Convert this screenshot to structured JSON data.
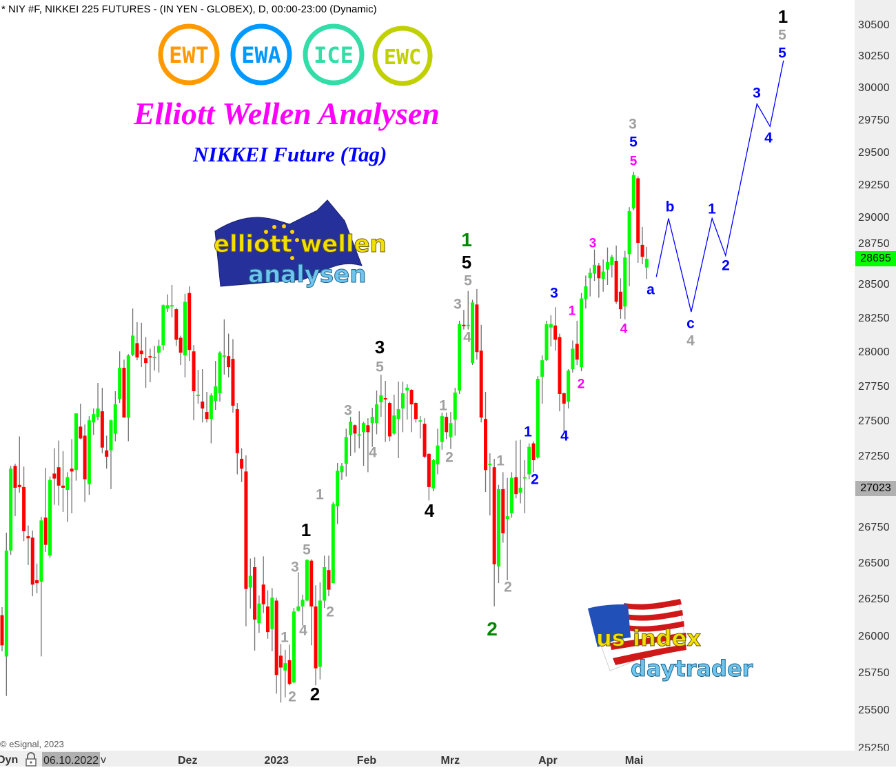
{
  "header": {
    "symbol_title": "* NIY #F, NIKKEI 225 FUTURES - (IN YEN - GLOBEX), D, 00:00-23:00 (Dynamic)",
    "headline": "Elliott Wellen Analysen",
    "subheadline": "NIKKEI Future (Tag)",
    "headline_color": "#ff00ff",
    "subheadline_color": "#0000ff",
    "badges": [
      {
        "text": "EWT",
        "color": "#ff9900"
      },
      {
        "text": "EWA",
        "color": "#0099ff"
      },
      {
        "text": "ICE",
        "color": "#33dda8"
      },
      {
        "text": "EWC",
        "color": "#c0d000"
      }
    ],
    "logo_elliott": {
      "line1": "elliott wellen",
      "line2": "analysen"
    },
    "logo_us": {
      "line1": "us index",
      "line2": "daytrader"
    }
  },
  "footer": {
    "copyright": "© eSignal, 2023",
    "mode": "Dyn",
    "date": "06.10.2022",
    "suffix": "v"
  },
  "chart_data": {
    "type": "candlestick",
    "title": "* NIY #F, NIKKEI 225 FUTURES - (IN YEN - GLOBEX), D, 00:00-23:00 (Dynamic)",
    "y_scale": "log",
    "ylim": [
      25250,
      30650
    ],
    "grid": false,
    "y_ticks": [
      30500,
      30250,
      30000,
      29750,
      29500,
      29250,
      29000,
      28750,
      28500,
      28250,
      28000,
      27750,
      27500,
      27250,
      26750,
      26500,
      26250,
      26000,
      25750,
      25500,
      25250
    ],
    "x_ticks": [
      {
        "label": "Dez",
        "bar": 42.6
      },
      {
        "label": "2023",
        "bar": 63
      },
      {
        "label": "Feb",
        "bar": 83.7
      },
      {
        "label": "Mrz",
        "bar": 102.9
      },
      {
        "label": "Apr",
        "bar": 125.3
      },
      {
        "label": "Mai",
        "bar": 145.1
      }
    ],
    "last_price": {
      "value": "28695",
      "color": "#00ff00"
    },
    "marker_price": {
      "value": "27023",
      "color": "#b0b0b0"
    },
    "up_color": "#00ff00",
    "down_color": "#ff0000",
    "wick_color": "#707070",
    "ohlc_fields": [
      "open",
      "high",
      "low",
      "close"
    ],
    "candles": [
      [
        26145,
        26200,
        25900,
        25940
      ],
      [
        25865,
        26715,
        25600,
        26590
      ],
      [
        26590,
        27185,
        26560,
        27165
      ],
      [
        27185,
        27200,
        26830,
        27030
      ],
      [
        27050,
        27395,
        26995,
        27035
      ],
      [
        27035,
        27180,
        26655,
        26725
      ],
      [
        26690,
        26765,
        26490,
        26675
      ],
      [
        26680,
        26730,
        26275,
        26355
      ],
      [
        26385,
        26500,
        26295,
        26365
      ],
      [
        26375,
        26825,
        25865,
        26800
      ],
      [
        26820,
        27170,
        26580,
        26630
      ],
      [
        26555,
        27110,
        26540,
        27085
      ],
      [
        27130,
        27310,
        26910,
        27095
      ],
      [
        27175,
        27365,
        26905,
        27045
      ],
      [
        27045,
        27290,
        26860,
        27030
      ],
      [
        27015,
        27140,
        26790,
        27105
      ],
      [
        27165,
        27375,
        26850,
        27145
      ],
      [
        27155,
        27560,
        27080,
        27560
      ],
      [
        27465,
        27630,
        27375,
        27380
      ],
      [
        27400,
        27480,
        26930,
        27090
      ],
      [
        27055,
        27540,
        26980,
        27510
      ],
      [
        27495,
        27595,
        27405,
        27555
      ],
      [
        27535,
        27780,
        27510,
        27595
      ],
      [
        27575,
        27745,
        27275,
        27315
      ],
      [
        27295,
        27400,
        27165,
        27250
      ],
      [
        27295,
        27515,
        27020,
        27510
      ],
      [
        27415,
        27720,
        27360,
        27625
      ],
      [
        27665,
        28010,
        27635,
        27890
      ],
      [
        27890,
        27950,
        27530,
        27530
      ],
      [
        27530,
        27990,
        27360,
        27980
      ],
      [
        27985,
        28325,
        27975,
        28125
      ],
      [
        28070,
        28225,
        27945,
        27965
      ],
      [
        28015,
        28220,
        27895,
        27990
      ],
      [
        27960,
        28115,
        27745,
        27925
      ],
      [
        27975,
        28030,
        27785,
        27970
      ],
      [
        27965,
        28050,
        27870,
        27970
      ],
      [
        28000,
        28095,
        27855,
        28050
      ],
      [
        28055,
        28355,
        28020,
        28350
      ],
      [
        28325,
        28430,
        28300,
        28350
      ],
      [
        28345,
        28500,
        28260,
        28350
      ],
      [
        28320,
        28330,
        28050,
        28095
      ],
      [
        28110,
        28125,
        27910,
        28000
      ],
      [
        27980,
        28435,
        27820,
        28375
      ],
      [
        28440,
        28490,
        27940,
        28020
      ],
      [
        28010,
        28055,
        27510,
        27720
      ],
      [
        27690,
        27875,
        27630,
        27695
      ],
      [
        27645,
        27880,
        27495,
        27595
      ],
      [
        27570,
        27715,
        27495,
        27520
      ],
      [
        27520,
        27705,
        27345,
        27690
      ],
      [
        27650,
        27940,
        27585,
        27755
      ],
      [
        27705,
        28010,
        27645,
        28000
      ],
      [
        27975,
        28245,
        27840,
        27980
      ],
      [
        27975,
        28140,
        27820,
        27895
      ],
      [
        27955,
        28100,
        27565,
        27615
      ],
      [
        27590,
        27635,
        27125,
        27275
      ],
      [
        27235,
        27310,
        27070,
        27165
      ],
      [
        27145,
        27260,
        26070,
        26325
      ],
      [
        26335,
        26535,
        26190,
        26415
      ],
      [
        26475,
        26545,
        25905,
        26115
      ],
      [
        26090,
        26280,
        26025,
        26225
      ],
      [
        26355,
        26550,
        26160,
        26220
      ],
      [
        26205,
        26315,
        25985,
        26030
      ],
      [
        26050,
        26330,
        25900,
        26265
      ],
      [
        26245,
        26265,
        25615,
        25740
      ],
      [
        25870,
        25950,
        25555,
        25790
      ],
      [
        25770,
        25910,
        25590,
        25820
      ],
      [
        25840,
        25945,
        25670,
        25680
      ],
      [
        25690,
        26195,
        25685,
        26170
      ],
      [
        26175,
        26440,
        26170,
        26205
      ],
      [
        26205,
        26285,
        26075,
        26250
      ],
      [
        26245,
        26530,
        26240,
        26525
      ],
      [
        26520,
        26530,
        25940,
        26205
      ],
      [
        26205,
        26350,
        25670,
        25785
      ],
      [
        25795,
        26370,
        25710,
        26245
      ],
      [
        26245,
        26555,
        26195,
        26475
      ],
      [
        26455,
        26555,
        26275,
        26320
      ],
      [
        26365,
        26930,
        26365,
        26915
      ],
      [
        26900,
        27205,
        26775,
        27150
      ],
      [
        27140,
        27205,
        27085,
        27185
      ],
      [
        27200,
        27450,
        27110,
        27390
      ],
      [
        27405,
        27535,
        27255,
        27500
      ],
      [
        27475,
        27480,
        27280,
        27415
      ],
      [
        27405,
        27575,
        27310,
        27410
      ],
      [
        27425,
        27500,
        27185,
        27490
      ],
      [
        27475,
        27525,
        27140,
        27425
      ],
      [
        27490,
        27600,
        27320,
        27535
      ],
      [
        27490,
        27725,
        27410,
        27625
      ],
      [
        27640,
        27840,
        27535,
        27690
      ],
      [
        27670,
        27795,
        27355,
        27665
      ],
      [
        27635,
        27645,
        27360,
        27395
      ],
      [
        27415,
        27695,
        27405,
        27545
      ],
      [
        27520,
        27790,
        27240,
        27590
      ],
      [
        27595,
        27790,
        27425,
        27705
      ],
      [
        27725,
        27770,
        27515,
        27745
      ],
      [
        27730,
        27735,
        27425,
        27625
      ],
      [
        27635,
        27640,
        27495,
        27520
      ],
      [
        27505,
        27540,
        27380,
        27510
      ],
      [
        27485,
        27525,
        27240,
        27250
      ],
      [
        27270,
        27275,
        26940,
        27035
      ],
      [
        27025,
        27235,
        27005,
        27225
      ],
      [
        27195,
        27450,
        27125,
        27330
      ],
      [
        27355,
        27565,
        27300,
        27540
      ],
      [
        27535,
        27565,
        27375,
        27425
      ],
      [
        27390,
        27570,
        27305,
        27490
      ],
      [
        27515,
        27745,
        27400,
        27710
      ],
      [
        27725,
        28235,
        27700,
        28210
      ],
      [
        28205,
        28315,
        28170,
        28200
      ],
      [
        28200,
        28455,
        28170,
        28205
      ],
      [
        27925,
        28390,
        27910,
        28370
      ],
      [
        28355,
        28470,
        27950,
        28005
      ],
      [
        28015,
        28205,
        27495,
        27530
      ],
      [
        27520,
        27715,
        27000,
        27155
      ],
      [
        27195,
        27275,
        26835,
        27200
      ],
      [
        27175,
        27235,
        26205,
        26495
      ],
      [
        26480,
        27050,
        26365,
        27020
      ],
      [
        27020,
        27140,
        26645,
        26710
      ],
      [
        26810,
        27100,
        26385,
        26830
      ],
      [
        26850,
        27140,
        26820,
        27100
      ],
      [
        27105,
        27365,
        26955,
        26985
      ],
      [
        26995,
        27370,
        26920,
        27030
      ],
      [
        27100,
        27225,
        26850,
        27105
      ],
      [
        27125,
        27345,
        27090,
        27320
      ],
      [
        27345,
        27360,
        27140,
        27225
      ],
      [
        27245,
        27830,
        27235,
        27810
      ],
      [
        27825,
        27980,
        27630,
        27945
      ],
      [
        27945,
        28235,
        27940,
        28210
      ],
      [
        28185,
        28275,
        28045,
        28210
      ],
      [
        28200,
        28335,
        28015,
        28095
      ],
      [
        28115,
        28140,
        27575,
        27700
      ],
      [
        27705,
        27710,
        27420,
        27630
      ],
      [
        27645,
        27880,
        27595,
        27870
      ],
      [
        27880,
        28090,
        27855,
        28030
      ],
      [
        28065,
        28235,
        27910,
        27950
      ],
      [
        27895,
        28440,
        27865,
        28400
      ],
      [
        28395,
        28570,
        28325,
        28490
      ],
      [
        28550,
        28625,
        28415,
        28590
      ],
      [
        28585,
        28765,
        28530,
        28650
      ],
      [
        28645,
        28665,
        28405,
        28550
      ],
      [
        28545,
        28690,
        28450,
        28600
      ],
      [
        28615,
        28780,
        28500,
        28670
      ],
      [
        28650,
        28725,
        28555,
        28710
      ],
      [
        28680,
        28795,
        28360,
        28375
      ],
      [
        28450,
        28550,
        28250,
        28320
      ],
      [
        28340,
        28755,
        28245,
        28705
      ],
      [
        28730,
        29085,
        28490,
        29055
      ],
      [
        29075,
        29355,
        29060,
        29330
      ],
      [
        29305,
        29320,
        28665,
        28815
      ],
      [
        28800,
        28935,
        28655,
        28710
      ],
      [
        28630,
        28785,
        28545,
        28695
      ]
    ],
    "projection": {
      "color": "#0000ff",
      "points": [
        {
          "bar": 150.2,
          "price": 28560
        },
        {
          "bar": 153,
          "price": 29000
        },
        {
          "bar": 158.2,
          "price": 28300
        },
        {
          "bar": 163,
          "price": 29000
        },
        {
          "bar": 166.1,
          "price": 28720
        },
        {
          "bar": 173.3,
          "price": 29880
        },
        {
          "bar": 176.3,
          "price": 29705
        },
        {
          "bar": 179.4,
          "price": 30220
        }
      ]
    },
    "wave_colors": {
      "black": "#000000",
      "gray": "#a0a0a0",
      "green": "#008800",
      "blue": "#0000ff",
      "magenta": "#ff00ff"
    },
    "wave_labels": [
      {
        "text": "1",
        "color": "black"
      },
      {
        "text": "5",
        "color": "gray"
      },
      {
        "text": "3",
        "color": "gray"
      },
      {
        "text": "1",
        "color": "gray"
      },
      {
        "text": "2",
        "color": "gray"
      },
      {
        "text": "4",
        "color": "gray"
      },
      {
        "text": "1",
        "color": "gray"
      },
      {
        "text": "2",
        "color": "gray"
      },
      {
        "text": "2",
        "color": "black"
      },
      {
        "text": "3",
        "color": "gray"
      },
      {
        "text": "4",
        "color": "gray"
      },
      {
        "text": "3",
        "color": "black"
      },
      {
        "text": "5",
        "color": "gray"
      },
      {
        "text": "4",
        "color": "black"
      },
      {
        "text": "1",
        "color": "gray"
      },
      {
        "text": "2",
        "color": "gray"
      },
      {
        "text": "1",
        "color": "green"
      },
      {
        "text": "5",
        "color": "black"
      },
      {
        "text": "5",
        "color": "gray"
      },
      {
        "text": "3",
        "color": "gray"
      },
      {
        "text": "4",
        "color": "gray"
      },
      {
        "text": "1",
        "color": "gray"
      },
      {
        "text": "2",
        "color": "gray"
      },
      {
        "text": "2",
        "color": "green"
      },
      {
        "text": "1",
        "color": "blue"
      },
      {
        "text": "2",
        "color": "blue"
      },
      {
        "text": "3",
        "color": "blue"
      },
      {
        "text": "4",
        "color": "blue"
      },
      {
        "text": "1",
        "color": "magenta"
      },
      {
        "text": "2",
        "color": "magenta"
      },
      {
        "text": "3",
        "color": "magenta"
      },
      {
        "text": "4",
        "color": "magenta"
      },
      {
        "text": "5",
        "color": "magenta"
      },
      {
        "text": "5",
        "color": "blue"
      },
      {
        "text": "3",
        "color": "gray"
      },
      {
        "text": "a",
        "color": "blue"
      },
      {
        "text": "b",
        "color": "blue"
      },
      {
        "text": "c",
        "color": "blue"
      },
      {
        "text": "4",
        "color": "gray"
      },
      {
        "text": "1",
        "color": "blue"
      },
      {
        "text": "2",
        "color": "blue"
      },
      {
        "text": "3",
        "color": "blue"
      },
      {
        "text": "4",
        "color": "blue"
      },
      {
        "text": "5",
        "color": "blue"
      },
      {
        "text": "5",
        "color": "gray"
      },
      {
        "text": "1",
        "color": "black"
      }
    ]
  }
}
